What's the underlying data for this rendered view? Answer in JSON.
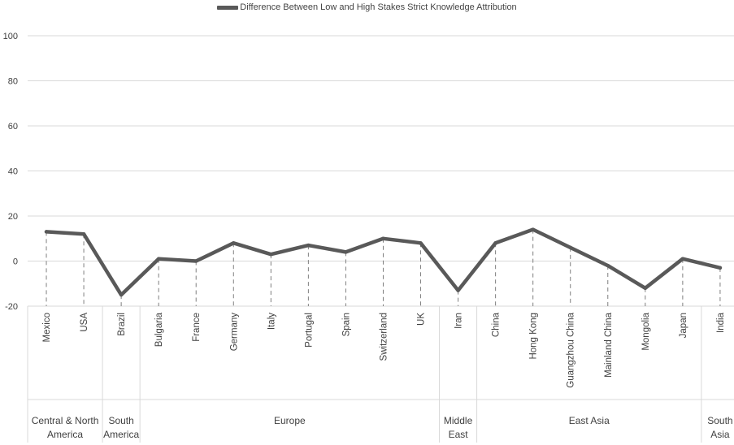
{
  "chart_data": {
    "type": "line",
    "title": "",
    "xlabel": "",
    "ylabel": "",
    "ylim": [
      -20,
      100
    ],
    "yticks": [
      -20,
      0,
      20,
      40,
      60,
      80,
      100
    ],
    "grid": true,
    "legend_position": "top-center",
    "categories": [
      "Mexico",
      "USA",
      "Brazil",
      "Bulgaria",
      "France",
      "Germany",
      "Italy",
      "Portugal",
      "Spain",
      "Switzerland",
      "UK",
      "Iran",
      "China",
      "Hong Kong",
      "Guangzhou China",
      "Mainland China",
      "Mongolia",
      "Japan",
      "India"
    ],
    "groups": [
      {
        "label": "Central & North America",
        "count": 2
      },
      {
        "label": "South America",
        "count": 1
      },
      {
        "label": "Europe",
        "count": 8
      },
      {
        "label": "Middle East",
        "count": 1
      },
      {
        "label": "East Asia",
        "count": 6
      },
      {
        "label": "South Asia",
        "count": 1
      }
    ],
    "series": [
      {
        "name": "Difference Between Low and High Stakes Strict Knowledge Attribution",
        "color": "#595959",
        "values": [
          13,
          12,
          -15,
          1,
          0,
          8,
          3,
          7,
          4,
          10,
          8,
          -13,
          8,
          14,
          6,
          -2,
          -12,
          1,
          -3
        ]
      }
    ]
  }
}
